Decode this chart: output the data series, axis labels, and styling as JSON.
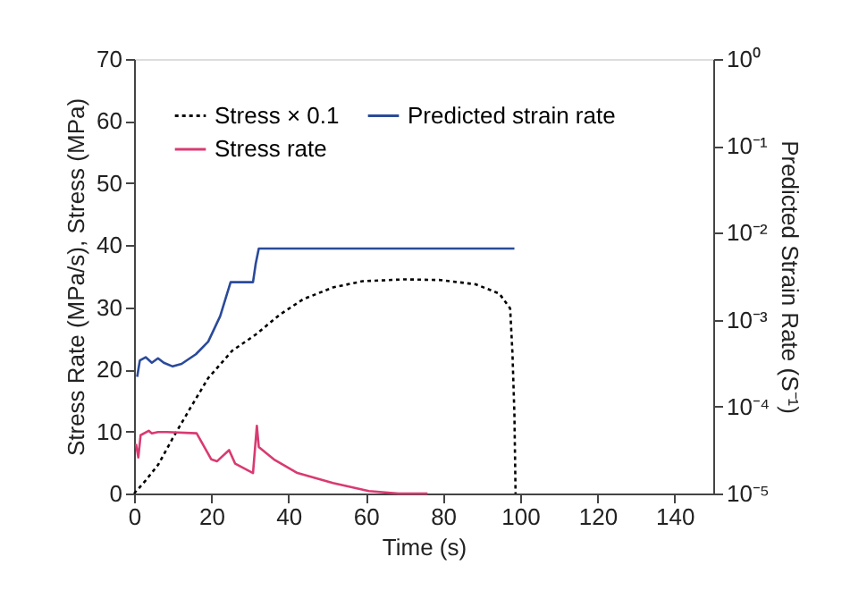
{
  "chart_data": {
    "type": "line",
    "xlabel": "Time (s)",
    "ylabel": "Stress Rate (MPa/s), Stress (MPa)",
    "y2label": "Predicted Strain Rate (S⁻¹)",
    "xlim": [
      0,
      150
    ],
    "xticks": [
      0,
      20,
      40,
      60,
      80,
      100,
      120,
      140
    ],
    "ylim": [
      0,
      70
    ],
    "yticks": [
      0,
      10,
      20,
      30,
      40,
      50,
      60,
      70
    ],
    "y2lim": [
      1e-05,
      1
    ],
    "y2ticks": [
      {
        "value": 1e-05,
        "label": "10⁻⁵"
      },
      {
        "value": 0.0001,
        "label": "10⁻⁴"
      },
      {
        "value": 0.001,
        "label": "10⁻³"
      },
      {
        "value": 0.01,
        "label": "10⁻²"
      },
      {
        "value": 0.1,
        "label": "10⁻¹"
      },
      {
        "value": 1,
        "label": "10⁰"
      }
    ],
    "log": "y2",
    "grid": false,
    "legend": "top left",
    "marker": "none",
    "series": [
      {
        "name": "Stress × 0.1",
        "color": "#000000",
        "line_style": "dotted",
        "x": [
          0,
          3,
          6.2,
          10,
          14.6,
          19.2,
          25.4,
          31.5,
          37.7,
          43.8,
          51.5,
          59.2,
          70,
          79.2,
          88.5,
          94.6,
          97.4,
          98,
          98.5,
          98.8
        ],
        "values": [
          0,
          2.1,
          4.6,
          8.9,
          13.8,
          18.6,
          23,
          25.6,
          28.8,
          31.3,
          33.2,
          34.2,
          34.5,
          34.4,
          33.7,
          32.2,
          29.8,
          22.5,
          12.8,
          0
        ]
      },
      {
        "name": "Predicted strain rate",
        "color": "#2a4a9a",
        "line_style": "solid",
        "axis": "y2",
        "x": [
          0.8,
          1.5,
          3,
          4.6,
          6.2,
          7.7,
          10,
          12.3,
          16,
          19.2,
          22.3,
          25,
          30.8,
          31.5,
          32.3,
          98.5
        ],
        "values": [
          0.00022,
          0.00034,
          0.00037,
          0.00032,
          0.00036,
          0.00032,
          0.00029,
          0.00031,
          0.0004,
          0.00056,
          0.0011,
          0.0027,
          0.0027,
          0.0044,
          0.0066,
          0.0066
        ]
      },
      {
        "name": "Stress rate",
        "color": "#d93a72",
        "line_style": "solid",
        "x": [
          0.5,
          1.1,
          1.7,
          3.8,
          4.6,
          6.2,
          8.5,
          16.2,
          20,
          21.5,
          24.6,
          26.2,
          30.8,
          31.8,
          32.3,
          36.2,
          42.3,
          51.5,
          60.8,
          68.5,
          76
        ],
        "values": [
          8,
          5.8,
          9.4,
          10.1,
          9.7,
          9.9,
          9.9,
          9.7,
          5.5,
          5.2,
          7,
          4.8,
          3.3,
          10.9,
          7.5,
          5.5,
          3.3,
          1.7,
          0.4,
          0,
          0
        ]
      }
    ]
  }
}
